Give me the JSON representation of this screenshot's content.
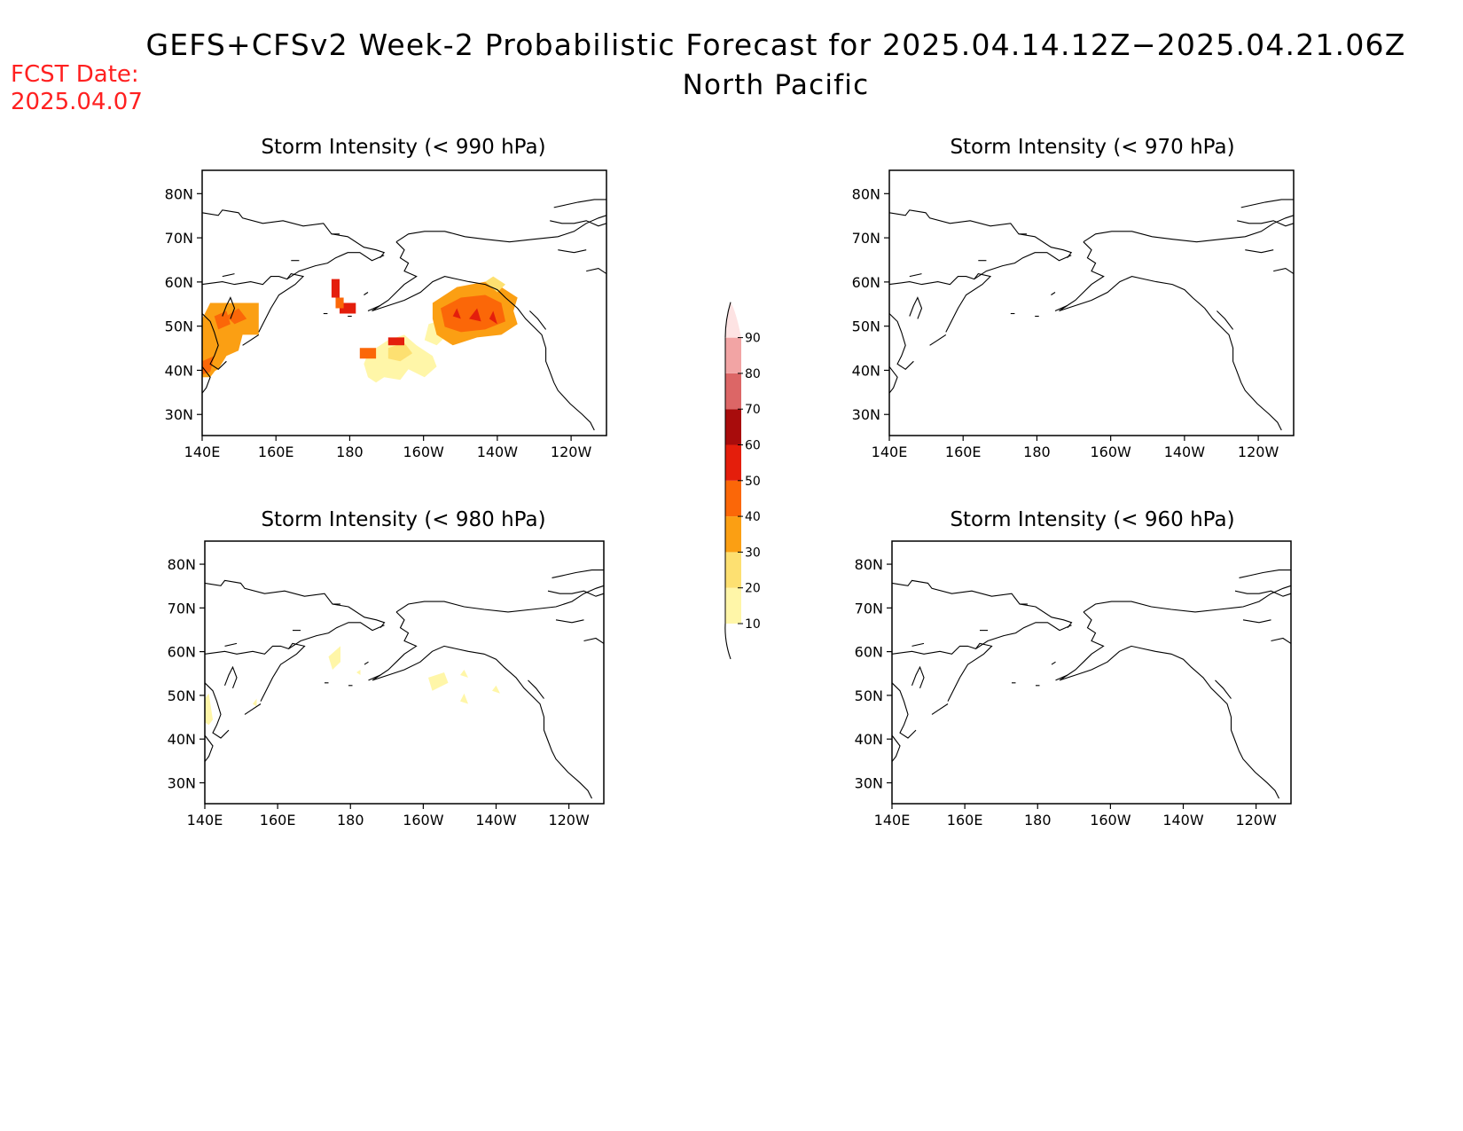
{
  "header": {
    "title": "GEFS+CFSv2 Week-2 Probabilistic Forecast for 2025.04.14.12Z−2025.04.21.06Z",
    "subtitle": "North Pacific",
    "fcst_label": "FCST Date:",
    "fcst_date": "2025.04.07"
  },
  "panels": [
    {
      "id": "p990",
      "title": "Storm Intensity (< 990 hPa)"
    },
    {
      "id": "p970",
      "title": "Storm Intensity (< 970 hPa)"
    },
    {
      "id": "p980",
      "title": "Storm Intensity (< 980 hPa)"
    },
    {
      "id": "p960",
      "title": "Storm Intensity (< 960 hPa)"
    }
  ],
  "axes": {
    "lat_ticks": [
      "80N",
      "70N",
      "60N",
      "50N",
      "40N",
      "30N"
    ],
    "lon_ticks": [
      "140E",
      "160E",
      "180",
      "160W",
      "140W",
      "120W"
    ]
  },
  "colorbar": {
    "levels": [
      10,
      20,
      30,
      40,
      50,
      60,
      70,
      80,
      90
    ],
    "labels": [
      "10",
      "20",
      "30",
      "40",
      "50",
      "60",
      "70",
      "80",
      "90"
    ],
    "colors": [
      "#fff6a8",
      "#fde071",
      "#fb9f13",
      "#fb6708",
      "#e41e0c",
      "#a80c0c",
      "#dc6666",
      "#f2a4a4",
      "#fde3e3"
    ]
  },
  "colors": {
    "header_accent": "#ff2020"
  }
}
